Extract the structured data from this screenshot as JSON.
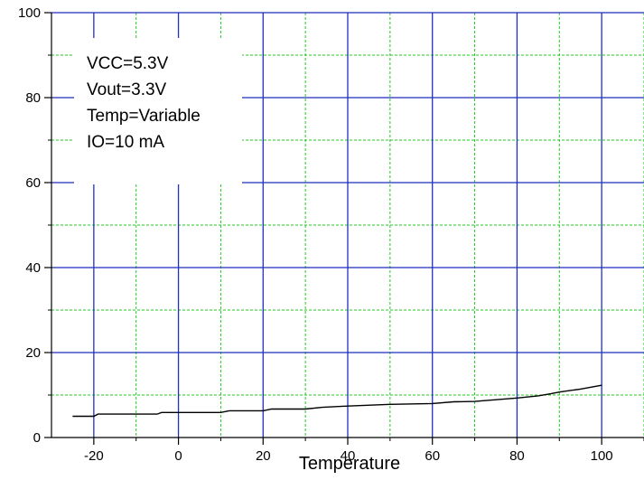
{
  "chart_data": {
    "type": "line",
    "title": "",
    "xlabel": "Temperature",
    "ylabel": "",
    "xlim": [
      -30,
      110
    ],
    "ylim": [
      0,
      100
    ],
    "x_ticks": [
      -20,
      0,
      20,
      40,
      60,
      80,
      100
    ],
    "y_ticks": [
      0,
      20,
      40,
      60,
      80,
      100
    ],
    "x_tick_labels": [
      "-20",
      "0",
      "20",
      "40",
      "60",
      "80",
      "100"
    ],
    "y_tick_labels": [
      "0",
      "20",
      "40",
      "60",
      "80",
      "100"
    ],
    "grid": true,
    "major_grid_color": "#1f2fbf",
    "minor_grid_color": "#22cc22",
    "series": [
      {
        "color": "#000000",
        "x": [
          -25,
          -20,
          -19,
          -10,
          -5,
          -4,
          10,
          12,
          20,
          22,
          30,
          34,
          40,
          50,
          60,
          65,
          70,
          75,
          80,
          85,
          88,
          90,
          95,
          100
        ],
        "y": [
          5.0,
          5.0,
          5.5,
          5.5,
          5.5,
          5.9,
          5.9,
          6.3,
          6.3,
          6.7,
          6.7,
          7.1,
          7.4,
          7.8,
          8.0,
          8.4,
          8.5,
          8.9,
          9.3,
          9.8,
          10.3,
          10.7,
          11.4,
          12.3
        ]
      }
    ],
    "annotations": [
      "VCC=5.3V",
      "Vout=3.3V",
      "Temp=Variable",
      "IO=10 mA"
    ]
  }
}
